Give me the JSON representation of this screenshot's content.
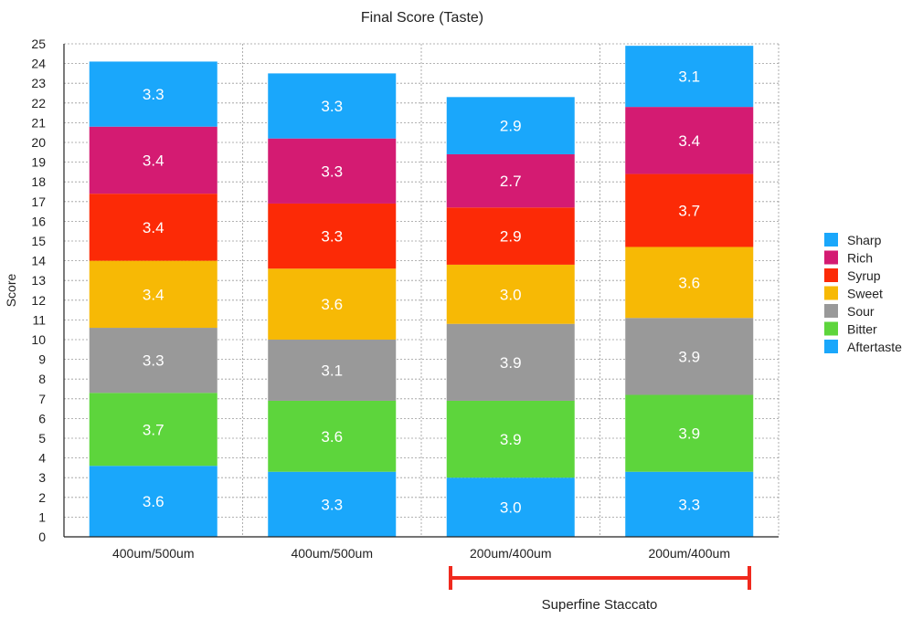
{
  "chart_data": {
    "type": "bar",
    "stacked": true,
    "title": "Final Score (Taste)",
    "xlabel": "",
    "ylabel": "Score",
    "ylim": [
      0,
      25
    ],
    "yticks": [
      0,
      1,
      2,
      3,
      4,
      5,
      6,
      7,
      8,
      9,
      10,
      11,
      12,
      13,
      14,
      15,
      16,
      17,
      18,
      19,
      20,
      21,
      22,
      23,
      24,
      25
    ],
    "grid": true,
    "legend_position": "right",
    "categories": [
      "400um/500um",
      "400um/500um",
      "200um/400um",
      "200um/400um"
    ],
    "series": [
      {
        "name": "Aftertaste",
        "color": "#1aa7fb",
        "values": [
          3.6,
          3.3,
          3.0,
          3.3
        ]
      },
      {
        "name": "Bitter",
        "color": "#5dd53c",
        "values": [
          3.7,
          3.6,
          3.9,
          3.9
        ]
      },
      {
        "name": "Sour",
        "color": "#999999",
        "values": [
          3.3,
          3.1,
          3.9,
          3.9
        ]
      },
      {
        "name": "Sweet",
        "color": "#f7b905",
        "values": [
          3.4,
          3.6,
          3.0,
          3.6
        ]
      },
      {
        "name": "Syrup",
        "color": "#fc2a06",
        "values": [
          3.4,
          3.3,
          2.9,
          3.7
        ]
      },
      {
        "name": "Rich",
        "color": "#d41b72",
        "values": [
          3.4,
          3.3,
          2.7,
          3.4
        ]
      },
      {
        "name": "Sharp",
        "color": "#1aa7fb",
        "values": [
          3.3,
          3.3,
          2.9,
          3.1
        ]
      }
    ],
    "legend_order": [
      "Sharp",
      "Rich",
      "Syrup",
      "Sweet",
      "Sour",
      "Bitter",
      "Aftertaste"
    ],
    "annotation": {
      "text": "Superfine Staccato",
      "color": "#f02a1e",
      "spans_categories": [
        2,
        3
      ]
    }
  }
}
